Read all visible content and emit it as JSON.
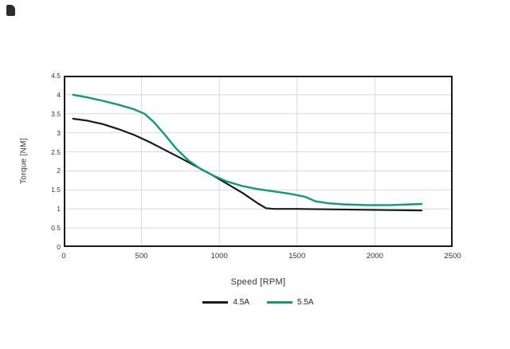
{
  "chart_data": {
    "type": "line",
    "title": "",
    "xlabel": "Speed [RPM]",
    "ylabel": "Torque [NM]",
    "xlim": [
      0,
      2500
    ],
    "ylim": [
      0,
      4.5
    ],
    "x_ticks": [
      0,
      500,
      1000,
      1500,
      2000,
      2500
    ],
    "y_ticks": [
      0,
      0.5,
      1,
      1.5,
      2,
      2.5,
      3,
      3.5,
      4,
      4.5
    ],
    "grid": true,
    "grid_color": "#d9d9d9",
    "border_color": "#1a1a1a",
    "legend_position": "bottom",
    "series": [
      {
        "name": "4.5A",
        "color": "#1a1a1a",
        "points": [
          [
            60,
            3.37
          ],
          [
            150,
            3.32
          ],
          [
            250,
            3.23
          ],
          [
            350,
            3.1
          ],
          [
            450,
            2.95
          ],
          [
            550,
            2.76
          ],
          [
            650,
            2.55
          ],
          [
            750,
            2.34
          ],
          [
            850,
            2.12
          ],
          [
            950,
            1.9
          ],
          [
            1050,
            1.66
          ],
          [
            1150,
            1.42
          ],
          [
            1250,
            1.14
          ],
          [
            1300,
            1.02
          ],
          [
            1350,
            1.0
          ],
          [
            1500,
            1.0
          ],
          [
            1700,
            0.99
          ],
          [
            1900,
            0.98
          ],
          [
            2100,
            0.97
          ],
          [
            2300,
            0.96
          ]
        ]
      },
      {
        "name": "5.5A",
        "color": "#0d9b78",
        "points": [
          [
            60,
            4.0
          ],
          [
            150,
            3.93
          ],
          [
            250,
            3.84
          ],
          [
            350,
            3.74
          ],
          [
            450,
            3.62
          ],
          [
            520,
            3.5
          ],
          [
            580,
            3.28
          ],
          [
            650,
            2.95
          ],
          [
            720,
            2.6
          ],
          [
            800,
            2.28
          ],
          [
            880,
            2.05
          ],
          [
            960,
            1.88
          ],
          [
            1050,
            1.72
          ],
          [
            1150,
            1.6
          ],
          [
            1250,
            1.52
          ],
          [
            1350,
            1.46
          ],
          [
            1450,
            1.4
          ],
          [
            1550,
            1.32
          ],
          [
            1620,
            1.2
          ],
          [
            1700,
            1.15
          ],
          [
            1800,
            1.12
          ],
          [
            1950,
            1.1
          ],
          [
            2100,
            1.1
          ],
          [
            2300,
            1.13
          ]
        ]
      }
    ]
  }
}
